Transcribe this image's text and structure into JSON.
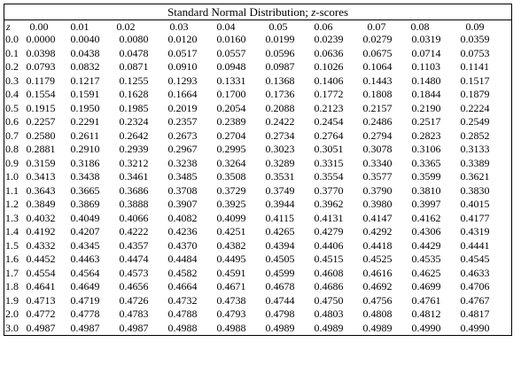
{
  "table": {
    "title_prefix": "Standard Normal Distribution; ",
    "title_italic": "z",
    "title_suffix": "-scores",
    "z_header": "z",
    "columns": [
      "0.00",
      "0.01",
      "0.02",
      "0.03",
      "0.04",
      "0.05",
      "0.06",
      "0.07",
      "0.08",
      "0.09"
    ],
    "rows": [
      {
        "z": "0.0",
        "values": [
          "0.0000",
          "0.0040",
          "0.0080",
          "0.0120",
          "0.0160",
          "0.0199",
          "0.0239",
          "0.0279",
          "0.0319",
          "0.0359"
        ]
      },
      {
        "z": "0.1",
        "values": [
          "0.0398",
          "0.0438",
          "0.0478",
          "0.0517",
          "0.0557",
          "0.0596",
          "0.0636",
          "0.0675",
          "0.0714",
          "0.0753"
        ]
      },
      {
        "z": "0.2",
        "values": [
          "0.0793",
          "0.0832",
          "0.0871",
          "0.0910",
          "0.0948",
          "0.0987",
          "0.1026",
          "0.1064",
          "0.1103",
          "0.1141"
        ]
      },
      {
        "z": "0.3",
        "values": [
          "0.1179",
          "0.1217",
          "0.1255",
          "0.1293",
          "0.1331",
          "0.1368",
          "0.1406",
          "0.1443",
          "0.1480",
          "0.1517"
        ]
      },
      {
        "z": "0.4",
        "values": [
          "0.1554",
          "0.1591",
          "0.1628",
          "0.1664",
          "0.1700",
          "0.1736",
          "0.1772",
          "0.1808",
          "0.1844",
          "0.1879"
        ]
      },
      {
        "z": "0.5",
        "values": [
          "0.1915",
          "0.1950",
          "0.1985",
          "0.2019",
          "0.2054",
          "0.2088",
          "0.2123",
          "0.2157",
          "0.2190",
          "0.2224"
        ]
      },
      {
        "z": "0.6",
        "values": [
          "0.2257",
          "0.2291",
          "0.2324",
          "0.2357",
          "0.2389",
          "0.2422",
          "0.2454",
          "0.2486",
          "0.2517",
          "0.2549"
        ]
      },
      {
        "z": "0.7",
        "values": [
          "0.2580",
          "0.2611",
          "0.2642",
          "0.2673",
          "0.2704",
          "0.2734",
          "0.2764",
          "0.2794",
          "0.2823",
          "0.2852"
        ]
      },
      {
        "z": "0.8",
        "values": [
          "0.2881",
          "0.2910",
          "0.2939",
          "0.2967",
          "0.2995",
          "0.3023",
          "0.3051",
          "0.3078",
          "0.3106",
          "0.3133"
        ]
      },
      {
        "z": "0.9",
        "values": [
          "0.3159",
          "0.3186",
          "0.3212",
          "0.3238",
          "0.3264",
          "0.3289",
          "0.3315",
          "0.3340",
          "0.3365",
          "0.3389"
        ]
      },
      {
        "z": "1.0",
        "values": [
          "0.3413",
          "0.3438",
          "0.3461",
          "0.3485",
          "0.3508",
          "0.3531",
          "0.3554",
          "0.3577",
          "0.3599",
          "0.3621"
        ]
      },
      {
        "z": "1.1",
        "values": [
          "0.3643",
          "0.3665",
          "0.3686",
          "0.3708",
          "0.3729",
          "0.3749",
          "0.3770",
          "0.3790",
          "0.3810",
          "0.3830"
        ]
      },
      {
        "z": "1.2",
        "values": [
          "0.3849",
          "0.3869",
          "0.3888",
          "0.3907",
          "0.3925",
          "0.3944",
          "0.3962",
          "0.3980",
          "0.3997",
          "0.4015"
        ]
      },
      {
        "z": "1.3",
        "values": [
          "0.4032",
          "0.4049",
          "0.4066",
          "0.4082",
          "0.4099",
          "0.4115",
          "0.4131",
          "0.4147",
          "0.4162",
          "0.4177"
        ]
      },
      {
        "z": "1.4",
        "values": [
          "0.4192",
          "0.4207",
          "0.4222",
          "0.4236",
          "0.4251",
          "0.4265",
          "0.4279",
          "0.4292",
          "0.4306",
          "0.4319"
        ]
      },
      {
        "z": "1.5",
        "values": [
          "0.4332",
          "0.4345",
          "0.4357",
          "0.4370",
          "0.4382",
          "0.4394",
          "0.4406",
          "0.4418",
          "0.4429",
          "0.4441"
        ]
      },
      {
        "z": "1.6",
        "values": [
          "0.4452",
          "0.4463",
          "0.4474",
          "0.4484",
          "0.4495",
          "0.4505",
          "0.4515",
          "0.4525",
          "0.4535",
          "0.4545"
        ]
      },
      {
        "z": "1.7",
        "values": [
          "0.4554",
          "0.4564",
          "0.4573",
          "0.4582",
          "0.4591",
          "0.4599",
          "0.4608",
          "0.4616",
          "0.4625",
          "0.4633"
        ]
      },
      {
        "z": "1.8",
        "values": [
          "0.4641",
          "0.4649",
          "0.4656",
          "0.4664",
          "0.4671",
          "0.4678",
          "0.4686",
          "0.4692",
          "0.4699",
          "0.4706"
        ]
      },
      {
        "z": "1.9",
        "values": [
          "0.4713",
          "0.4719",
          "0.4726",
          "0.4732",
          "0.4738",
          "0.4744",
          "0.4750",
          "0.4756",
          "0.4761",
          "0.4767"
        ]
      },
      {
        "z": "2.0",
        "values": [
          "0.4772",
          "0.4778",
          "0.4783",
          "0.4788",
          "0.4793",
          "0.4798",
          "0.4803",
          "0.4808",
          "0.4812",
          "0.4817"
        ]
      },
      {
        "z": "3.0",
        "values": [
          "0.4987",
          "0.4987",
          "0.4987",
          "0.4988",
          "0.4988",
          "0.4989",
          "0.4989",
          "0.4989",
          "0.4990",
          "0.4990"
        ]
      }
    ]
  }
}
